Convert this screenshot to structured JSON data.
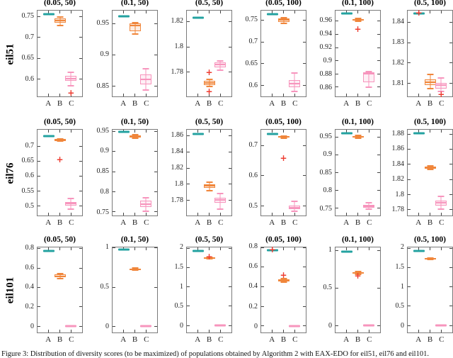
{
  "figure": {
    "row_labels": [
      "eil51",
      "eil76",
      "eil101"
    ],
    "caption": "Figure 3: Distribution of diversity scores (to be maximized) of populations obtained by Algorithm 2 with EAX-EDO for eil51, eil76 and eil101."
  },
  "colors": {
    "teal": "#23a2a0",
    "orange": "#f0863b",
    "pink": "#f795bd",
    "outlier_red": "#ee3c31",
    "axis": "#7a7a7a",
    "tick_text": "#1f1f1f"
  },
  "chart_data": {
    "type": "box",
    "legend": "none",
    "grid": false,
    "categories": [
      "A",
      "B",
      "C"
    ],
    "plots": [
      {
        "row": 0,
        "col": 0,
        "title": "(0.05, 50)",
        "ylim": [
          0.558,
          0.765
        ],
        "yticks": [
          0.6,
          0.65,
          0.7,
          0.75
        ],
        "series": [
          {
            "name": "A",
            "color": "teal",
            "kind": "flat",
            "value": 0.757,
            "outliers": []
          },
          {
            "name": "B",
            "color": "orange",
            "kind": "box",
            "lo": 0.729,
            "q1": 0.736,
            "med": 0.741,
            "q3": 0.746,
            "hi": 0.749,
            "outliers": []
          },
          {
            "name": "C",
            "color": "pink",
            "kind": "box",
            "lo": 0.584,
            "q1": 0.595,
            "med": 0.601,
            "q3": 0.607,
            "hi": 0.617,
            "outliers": [
              0.566
            ]
          }
        ]
      },
      {
        "row": 0,
        "col": 1,
        "title": "(0.1, 50)",
        "ylim": [
          0.833,
          0.971
        ],
        "yticks": [
          0.85,
          0.9,
          0.95
        ],
        "series": [
          {
            "name": "A",
            "color": "teal",
            "kind": "flat",
            "value": 0.962,
            "outliers": []
          },
          {
            "name": "B",
            "color": "orange",
            "kind": "box",
            "lo": 0.9335,
            "q1": 0.938,
            "med": 0.947,
            "q3": 0.95,
            "hi": 0.952,
            "outliers": []
          },
          {
            "name": "C",
            "color": "pink",
            "kind": "box",
            "lo": 0.843,
            "q1": 0.852,
            "med": 0.86,
            "q3": 0.868,
            "hi": 0.878,
            "outliers": []
          }
        ]
      },
      {
        "row": 0,
        "col": 2,
        "title": "(0.5, 50)",
        "ylim": [
          1.7605,
          1.8289
        ],
        "yticks": [
          1.78,
          1.8,
          1.82
        ],
        "series": [
          {
            "name": "A",
            "color": "teal",
            "kind": "flat",
            "value": 1.823,
            "outliers": []
          },
          {
            "name": "B",
            "color": "orange",
            "kind": "box",
            "lo": 1.7685,
            "q1": 1.7695,
            "med": 1.771,
            "q3": 1.7727,
            "hi": 1.774,
            "outliers": [
              1.78,
              1.7645
            ]
          },
          {
            "name": "C",
            "color": "pink",
            "kind": "box",
            "lo": 1.7815,
            "q1": 1.7838,
            "med": 1.7857,
            "q3": 1.7876,
            "hi": 1.789,
            "outliers": []
          }
        ]
      },
      {
        "row": 0,
        "col": 3,
        "title": "(0.05, 100)",
        "ylim": [
          0.575,
          0.772
        ],
        "yticks": [
          0.6,
          0.65,
          0.7,
          0.75
        ],
        "series": [
          {
            "name": "A",
            "color": "teal",
            "kind": "flat",
            "value": 0.764,
            "outliers": []
          },
          {
            "name": "B",
            "color": "orange",
            "kind": "box",
            "lo": 0.742,
            "q1": 0.7465,
            "med": 0.751,
            "q3": 0.754,
            "hi": 0.756,
            "outliers": []
          },
          {
            "name": "C",
            "color": "pink",
            "kind": "box",
            "lo": 0.586,
            "q1": 0.596,
            "med": 0.604,
            "q3": 0.613,
            "hi": 0.628,
            "outliers": []
          }
        ]
      },
      {
        "row": 0,
        "col": 4,
        "title": "(0.1, 100)",
        "ylim": [
          0.846,
          0.976
        ],
        "yticks": [
          0.86,
          0.88,
          0.9,
          0.92,
          0.94,
          0.96
        ],
        "series": [
          {
            "name": "A",
            "color": "teal",
            "kind": "flat",
            "value": 0.972,
            "outliers": []
          },
          {
            "name": "B",
            "color": "orange",
            "kind": "box",
            "lo": 0.9595,
            "q1": 0.9605,
            "med": 0.962,
            "q3": 0.9635,
            "hi": 0.9645,
            "outliers": [
              0.948
            ]
          },
          {
            "name": "C",
            "color": "pink",
            "kind": "box",
            "lo": 0.86,
            "q1": 0.868,
            "med": 0.88,
            "q3": 0.882,
            "hi": 0.884,
            "outliers": []
          }
        ]
      },
      {
        "row": 0,
        "col": 5,
        "title": "(0.5, 100)",
        "ylim": [
          1.8035,
          1.8459
        ],
        "yticks": [
          1.81,
          1.82,
          1.83,
          1.84
        ],
        "series": [
          {
            "name": "A",
            "color": "teal",
            "kind": "flat",
            "value": 1.8445,
            "outliers": [
              1.8447
            ]
          },
          {
            "name": "B",
            "color": "orange",
            "kind": "box",
            "lo": 1.8075,
            "q1": 1.809,
            "med": 1.8105,
            "q3": 1.812,
            "hi": 1.8145,
            "outliers": []
          },
          {
            "name": "C",
            "color": "pink",
            "kind": "box",
            "lo": 1.806,
            "q1": 1.8075,
            "med": 1.809,
            "q3": 1.81,
            "hi": 1.8125,
            "outliers": [
              1.8045
            ]
          }
        ]
      },
      {
        "row": 1,
        "col": 0,
        "title": "(0.05, 50)",
        "ylim": [
          0.467,
          0.7564
        ],
        "yticks": [
          0.5,
          0.55,
          0.6,
          0.65,
          0.7
        ],
        "series": [
          {
            "name": "A",
            "color": "teal",
            "kind": "flat",
            "value": 0.735,
            "outliers": []
          },
          {
            "name": "B",
            "color": "orange",
            "kind": "box",
            "lo": 0.7185,
            "q1": 0.72,
            "med": 0.722,
            "q3": 0.7235,
            "hi": 0.7245,
            "outliers": [
              0.655
            ]
          },
          {
            "name": "C",
            "color": "pink",
            "kind": "box",
            "lo": 0.489,
            "q1": 0.5,
            "med": 0.507,
            "q3": 0.5135,
            "hi": 0.524,
            "outliers": []
          }
        ]
      },
      {
        "row": 1,
        "col": 1,
        "title": "(0.1, 50)",
        "ylim": [
          0.741,
          0.9545
        ],
        "yticks": [
          0.75,
          0.8,
          0.85,
          0.9,
          0.95
        ],
        "series": [
          {
            "name": "A",
            "color": "teal",
            "kind": "flat",
            "value": 0.949,
            "outliers": []
          },
          {
            "name": "B",
            "color": "orange",
            "kind": "box",
            "lo": 0.9335,
            "q1": 0.9355,
            "med": 0.938,
            "q3": 0.941,
            "hi": 0.9425,
            "outliers": []
          },
          {
            "name": "C",
            "color": "pink",
            "kind": "box",
            "lo": 0.7515,
            "q1": 0.762,
            "med": 0.77,
            "q3": 0.778,
            "hi": 0.7855,
            "outliers": []
          }
        ]
      },
      {
        "row": 1,
        "col": 2,
        "title": "(0.5, 50)",
        "ylim": [
          1.7608,
          1.8678
        ],
        "yticks": [
          1.78,
          1.8,
          1.82,
          1.84,
          1.86
        ],
        "series": [
          {
            "name": "A",
            "color": "teal",
            "kind": "flat",
            "value": 1.8626,
            "outliers": []
          },
          {
            "name": "B",
            "color": "orange",
            "kind": "box",
            "lo": 1.7915,
            "q1": 1.795,
            "med": 1.7975,
            "q3": 1.8,
            "hi": 1.8025,
            "outliers": []
          },
          {
            "name": "C",
            "color": "pink",
            "kind": "box",
            "lo": 1.7686,
            "q1": 1.777,
            "med": 1.78,
            "q3": 1.7828,
            "hi": 1.7878,
            "outliers": []
          }
        ]
      },
      {
        "row": 1,
        "col": 3,
        "title": "(0.05, 100)",
        "ylim": [
          0.4674,
          0.7535
        ],
        "yticks": [
          0.5,
          0.6,
          0.7
        ],
        "series": [
          {
            "name": "A",
            "color": "teal",
            "kind": "flat",
            "value": 0.7395,
            "outliers": []
          },
          {
            "name": "B",
            "color": "orange",
            "kind": "box",
            "lo": 0.726,
            "q1": 0.7275,
            "med": 0.7295,
            "q3": 0.7315,
            "hi": 0.733,
            "outliers": [
              0.658
            ]
          },
          {
            "name": "C",
            "color": "pink",
            "kind": "box",
            "lo": 0.4805,
            "q1": 0.4877,
            "med": 0.494,
            "q3": 0.5,
            "hi": 0.5155,
            "outliers": []
          }
        ]
      },
      {
        "row": 1,
        "col": 4,
        "title": "(0.1, 100)",
        "ylim": [
          0.7297,
          0.9715
        ],
        "yticks": [
          0.75,
          0.8,
          0.85,
          0.9,
          0.95
        ],
        "series": [
          {
            "name": "A",
            "color": "teal",
            "kind": "flat",
            "value": 0.962,
            "outliers": []
          },
          {
            "name": "B",
            "color": "orange",
            "kind": "box",
            "lo": 0.948,
            "q1": 0.95,
            "med": 0.952,
            "q3": 0.954,
            "hi": 0.955,
            "outliers": []
          },
          {
            "name": "C",
            "color": "pink",
            "kind": "box",
            "lo": 0.7475,
            "q1": 0.752,
            "med": 0.756,
            "q3": 0.7605,
            "hi": 0.7655,
            "outliers": []
          }
        ]
      },
      {
        "row": 1,
        "col": 5,
        "title": "(0.5, 100)",
        "ylim": [
          1.7716,
          1.8865
        ],
        "yticks": [
          1.78,
          1.8,
          1.82,
          1.84,
          1.86,
          1.88
        ],
        "series": [
          {
            "name": "A",
            "color": "teal",
            "kind": "flat",
            "value": 1.8818,
            "outliers": []
          },
          {
            "name": "B",
            "color": "orange",
            "kind": "box",
            "lo": 1.8335,
            "q1": 1.8345,
            "med": 1.836,
            "q3": 1.8375,
            "hi": 1.8385,
            "outliers": []
          },
          {
            "name": "C",
            "color": "pink",
            "kind": "box",
            "lo": 1.7798,
            "q1": 1.785,
            "med": 1.7885,
            "q3": 1.792,
            "hi": 1.7969,
            "outliers": []
          }
        ]
      },
      {
        "row": 2,
        "col": 0,
        "title": "(0.05, 50)",
        "ylim": [
          -0.065,
          0.814
        ],
        "yticks": [
          0,
          0.2,
          0.4,
          0.6,
          0.8
        ],
        "series": [
          {
            "name": "A",
            "color": "teal",
            "kind": "flat",
            "value": 0.776,
            "outliers": []
          },
          {
            "name": "B",
            "color": "orange",
            "kind": "box",
            "lo": 0.494,
            "q1": 0.503,
            "med": 0.517,
            "q3": 0.532,
            "hi": 0.543,
            "outliers": []
          },
          {
            "name": "C",
            "color": "pink",
            "kind": "flat",
            "value": 0,
            "outliers": []
          }
        ]
      },
      {
        "row": 2,
        "col": 1,
        "title": "(0.1, 50)",
        "ylim": [
          -0.0816,
          1.009
        ],
        "yticks": [
          0,
          0.5,
          1
        ],
        "series": [
          {
            "name": "A",
            "color": "teal",
            "kind": "flat",
            "value": 0.979,
            "outliers": []
          },
          {
            "name": "B",
            "color": "orange",
            "kind": "box",
            "lo": 0.718,
            "q1": 0.722,
            "med": 0.729,
            "q3": 0.737,
            "hi": 0.741,
            "outliers": []
          },
          {
            "name": "C",
            "color": "pink",
            "kind": "flat",
            "value": 0,
            "outliers": []
          }
        ]
      },
      {
        "row": 2,
        "col": 2,
        "title": "(0.5, 50)",
        "ylim": [
          -0.178,
          2.02
        ],
        "yticks": [
          0,
          0.5,
          1,
          1.5,
          2
        ],
        "series": [
          {
            "name": "A",
            "color": "teal",
            "kind": "flat",
            "value": 1.924,
            "outliers": []
          },
          {
            "name": "B",
            "color": "orange",
            "kind": "box",
            "lo": 1.72,
            "q1": 1.731,
            "med": 1.745,
            "q3": 1.758,
            "hi": 1.768,
            "outliers": [
              1.776
            ]
          },
          {
            "name": "C",
            "color": "pink",
            "kind": "flat",
            "value": 0,
            "outliers": []
          }
        ]
      },
      {
        "row": 2,
        "col": 3,
        "title": "(0.05, 100)",
        "ylim": [
          -0.065,
          0.8
        ],
        "yticks": [
          0,
          0.2,
          0.4,
          0.6,
          0.8
        ],
        "series": [
          {
            "name": "A",
            "color": "teal",
            "kind": "flat",
            "value": 0.77,
            "outliers": [
              0.777
            ]
          },
          {
            "name": "B",
            "color": "orange",
            "kind": "box",
            "lo": 0.449,
            "q1": 0.457,
            "med": 0.466,
            "q3": 0.477,
            "hi": 0.483,
            "outliers": [
              0.518
            ]
          },
          {
            "name": "C",
            "color": "pink",
            "kind": "flat",
            "value": 0,
            "outliers": []
          }
        ]
      },
      {
        "row": 2,
        "col": 4,
        "title": "(0.1, 100)",
        "ylim": [
          -0.094,
          1.044
        ],
        "yticks": [
          0,
          0.5,
          1
        ],
        "series": [
          {
            "name": "A",
            "color": "teal",
            "kind": "flat",
            "value": 0.988,
            "outliers": []
          },
          {
            "name": "B",
            "color": "orange",
            "kind": "box",
            "lo": 0.682,
            "q1": 0.69,
            "med": 0.703,
            "q3": 0.716,
            "hi": 0.722,
            "outliers": [
              0.663
            ]
          },
          {
            "name": "C",
            "color": "pink",
            "kind": "flat",
            "value": 0,
            "outliers": []
          }
        ]
      },
      {
        "row": 2,
        "col": 5,
        "title": "(0.5, 100)",
        "ylim": [
          -0.178,
          2.02
        ],
        "yticks": [
          0,
          0.5,
          1,
          1.5,
          2
        ],
        "series": [
          {
            "name": "A",
            "color": "teal",
            "kind": "flat",
            "value": 1.928,
            "outliers": []
          },
          {
            "name": "B",
            "color": "orange",
            "kind": "box",
            "lo": 1.712,
            "q1": 1.718,
            "med": 1.73,
            "q3": 1.742,
            "hi": 1.747,
            "outliers": []
          },
          {
            "name": "C",
            "color": "pink",
            "kind": "flat",
            "value": 0,
            "outliers": []
          }
        ]
      }
    ]
  }
}
